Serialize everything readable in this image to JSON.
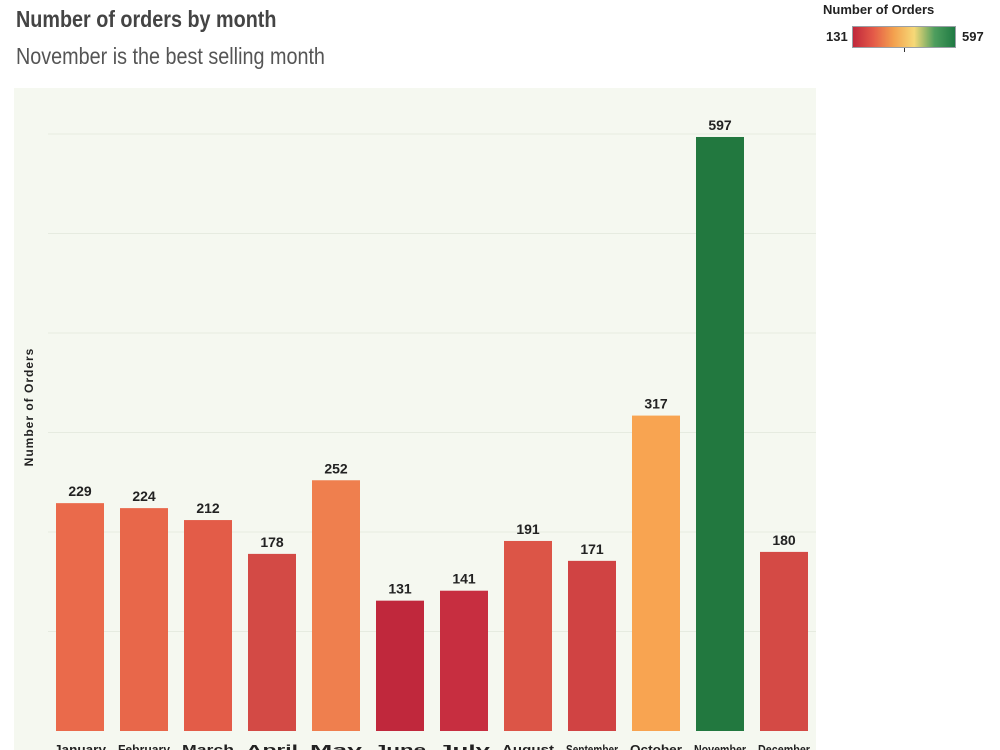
{
  "header": {
    "title": "Number of orders by month",
    "subtitle": "November is the best selling month"
  },
  "legend": {
    "title": "Number of Orders",
    "min_label": "131",
    "max_label": "597",
    "gradient_colors": [
      "#c0283c",
      "#e45a48",
      "#f3a14e",
      "#f6d978",
      "#4e9e5e",
      "#1f7a43"
    ]
  },
  "chart_data": {
    "type": "bar",
    "categories": [
      "January",
      "February",
      "March",
      "April",
      "May",
      "June",
      "July",
      "August",
      "September",
      "October",
      "November",
      "December"
    ],
    "values": [
      229,
      224,
      212,
      178,
      252,
      131,
      141,
      191,
      171,
      317,
      597,
      180
    ],
    "title": "Number of orders by month",
    "subtitle": "November is the best selling month",
    "xlabel": "",
    "ylabel": "Number of Orders",
    "ylim": [
      0,
      600
    ],
    "grid": true,
    "legend_position": "top-right",
    "bar_colors": [
      "#ea6a4b",
      "#e8674a",
      "#e35c48",
      "#d34a45",
      "#ef7f4e",
      "#c0283c",
      "#c72e40",
      "#dc5547",
      "#d04343",
      "#f8a451",
      "#22783f",
      "#d44a45"
    ],
    "plot_background": "#f5f8f0"
  }
}
